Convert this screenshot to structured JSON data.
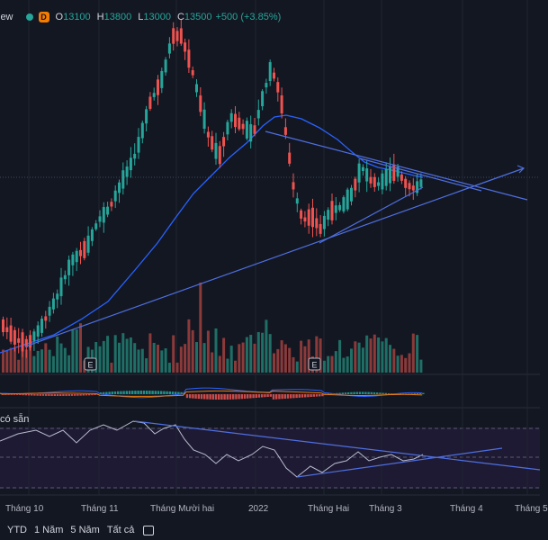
{
  "header": {
    "brand": "iew",
    "o_label": "O",
    "o_value": "13100",
    "h_label": "H",
    "h_value": "13800",
    "l_label": "L",
    "l_value": "13000",
    "c_label": "C",
    "c_value": "13500",
    "change": "+500 (+3.85%)",
    "d_badge": "D"
  },
  "rsi_pane": {
    "label": "có sẵn"
  },
  "bottom_bar": {
    "items": [
      "YTD",
      "1 Năm",
      "5 Năm",
      "Tất cả"
    ]
  },
  "colors": {
    "up": "#26a69a",
    "down": "#ef5350",
    "ma": "#2962ff",
    "trend": "#4f6fe0",
    "background": "#131722",
    "grid": "#1f2430",
    "rsi_bg": "#1e1a33",
    "signal": "#f57c00"
  },
  "chart_data": {
    "type": "candlestick",
    "x_ticks": [
      "Tháng 10",
      "Tháng 11",
      "Tháng Mười hai",
      "2022",
      "Tháng Hai",
      "Tháng 3",
      "Tháng 4",
      "Tháng 5"
    ],
    "markers": [
      "E",
      "E"
    ],
    "last": {
      "open": 13100,
      "high": 13800,
      "low": 13000,
      "close": 13500
    }
  }
}
